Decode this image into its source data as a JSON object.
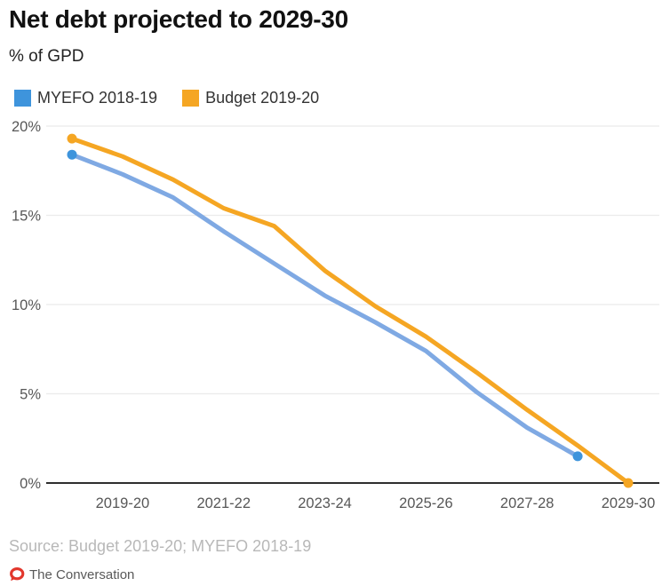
{
  "header": {
    "title": "Net debt projected to 2029-30",
    "subtitle": "% of GPD"
  },
  "legend": {
    "items": [
      {
        "label": "MYEFO 2018-19",
        "color": "#3e94dc"
      },
      {
        "label": "Budget 2019-20",
        "color": "#f5a623"
      }
    ]
  },
  "chart_data": {
    "type": "line",
    "title": "Net debt projected to 2029-30",
    "ylabel": "% of GPD",
    "categories": [
      "2018-19",
      "2019-20",
      "2020-21",
      "2021-22",
      "2022-23",
      "2023-24",
      "2024-25",
      "2025-26",
      "2026-27",
      "2027-28",
      "2028-29",
      "2029-30"
    ],
    "series": [
      {
        "name": "MYEFO 2018-19",
        "line_color": "#7fa9e3",
        "dot_color": "#3e94dc",
        "values": [
          18.4,
          17.3,
          16.0,
          14.1,
          12.3,
          10.5,
          9.0,
          7.4,
          5.1,
          3.1,
          1.5
        ]
      },
      {
        "name": "Budget 2019-20",
        "line_color": "#f5a623",
        "dot_color": "#f5a623",
        "values": [
          19.3,
          18.3,
          17.0,
          15.4,
          14.4,
          11.9,
          9.9,
          8.2,
          6.2,
          4.1,
          2.1,
          0.0
        ]
      }
    ],
    "x_tick_labels": [
      "2019-20",
      "2021-22",
      "2023-24",
      "2025-26",
      "2027-28",
      "2029-30"
    ],
    "y_ticks": [
      0,
      5,
      10,
      15,
      20
    ],
    "y_tick_labels": [
      "0%",
      "5%",
      "10%",
      "15%",
      "20%"
    ],
    "ylim": [
      0,
      20
    ],
    "grid": true,
    "legend_position": "top-left",
    "axis_color": "#2e2e2e",
    "gridline_color": "#ebebeb",
    "tick_label_color": "#575757"
  },
  "footer": {
    "source": "Source: Budget 2019-20; MYEFO 2018-19",
    "brand": "The Conversation",
    "brand_color": "#e2372c",
    "brand_icon": "speech-bubble-o-icon"
  }
}
